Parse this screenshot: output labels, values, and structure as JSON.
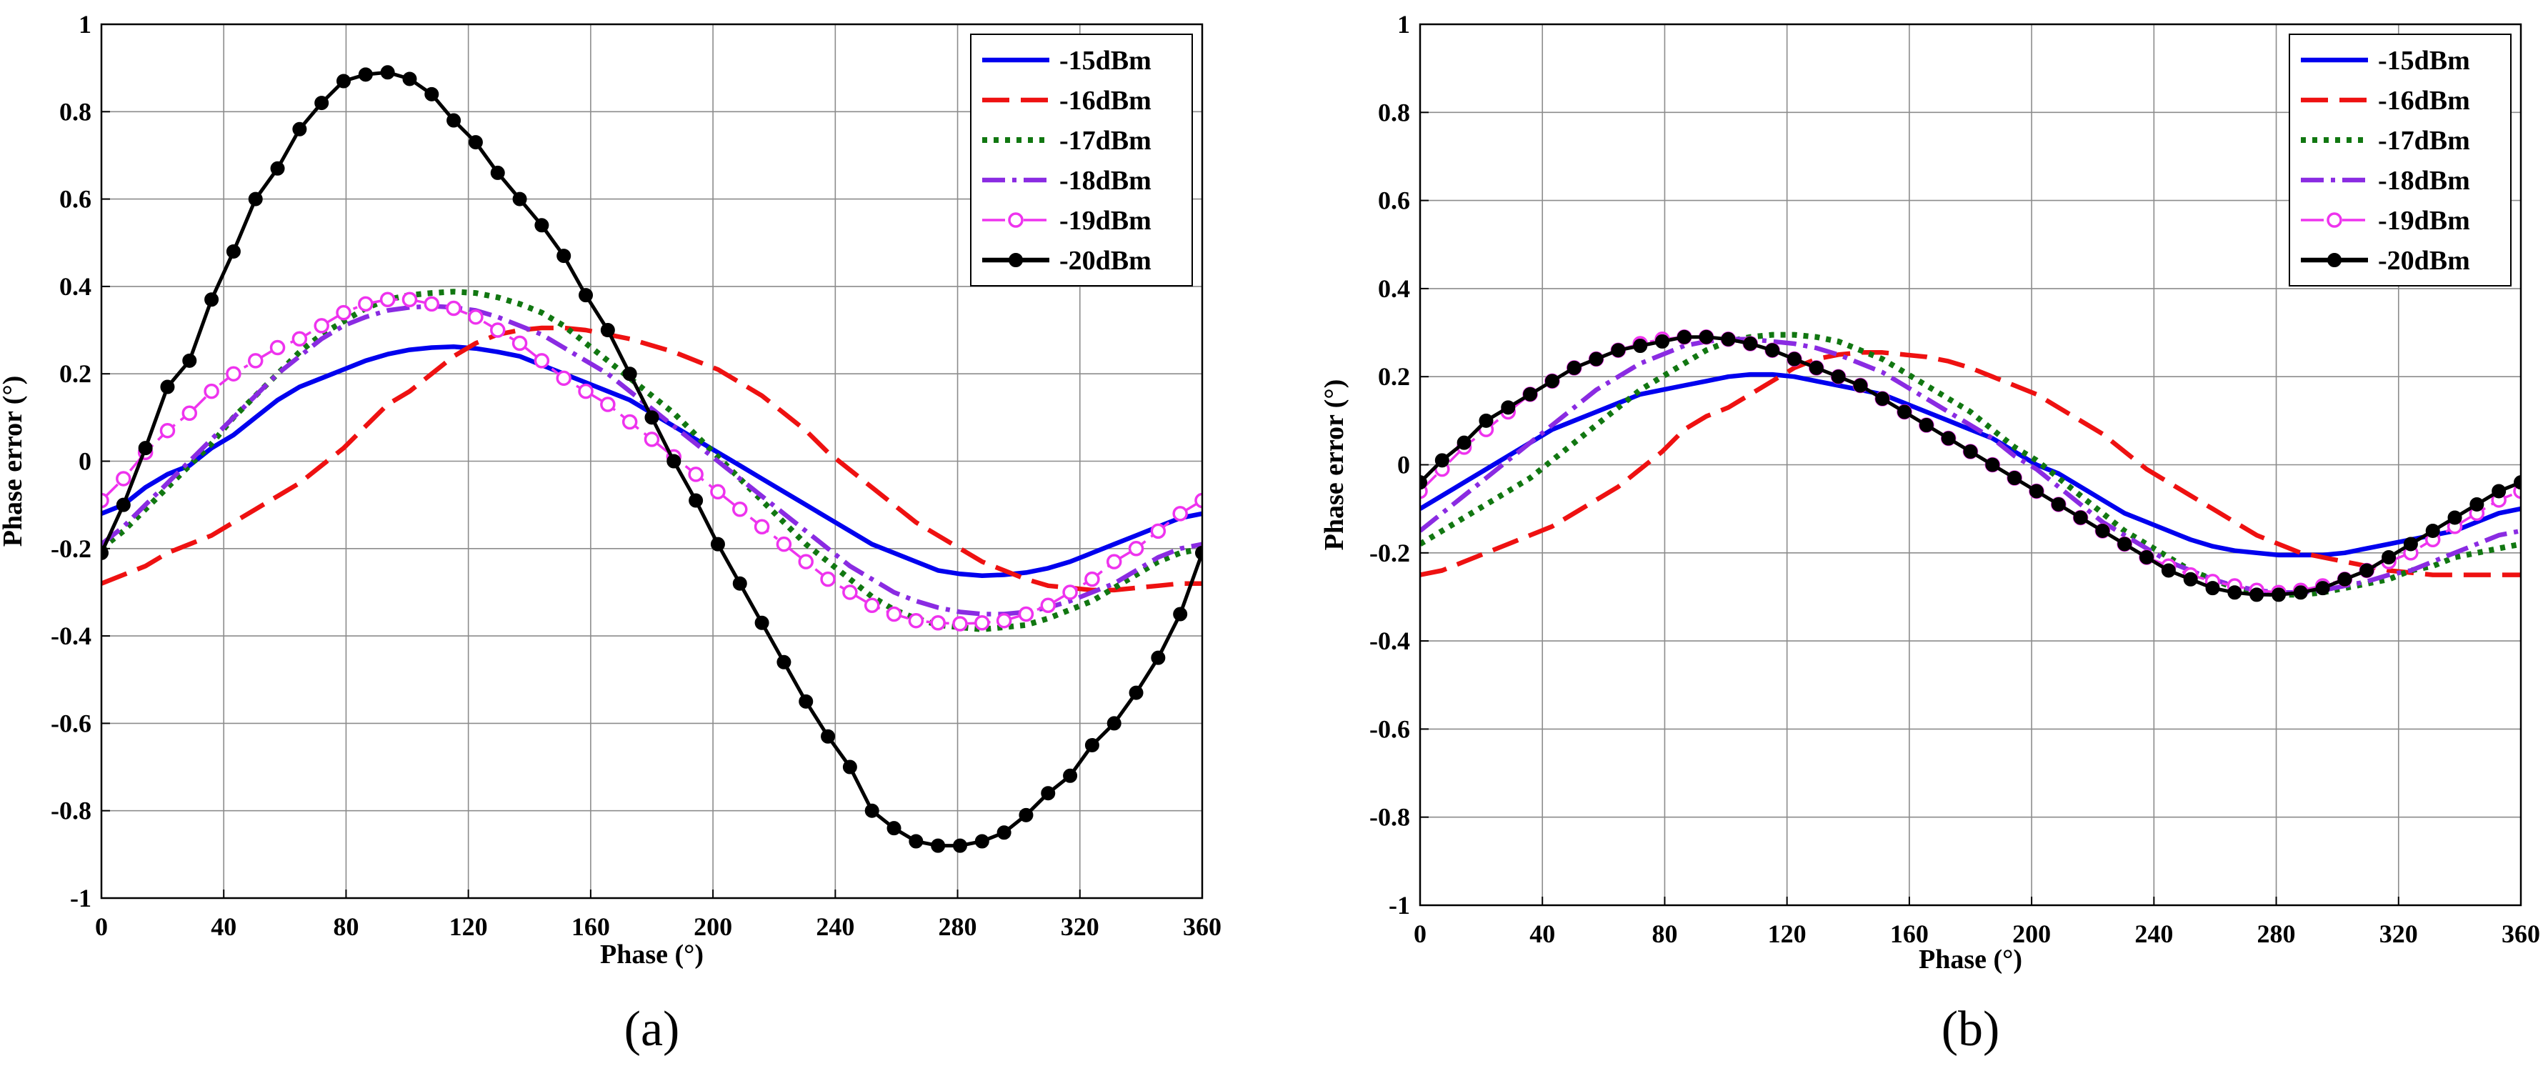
{
  "chart_data": [
    {
      "type": "line",
      "panel_label": "(a)",
      "xlabel": "Phase (°)",
      "ylabel": "Phase error (°)",
      "xlim": [
        0,
        360
      ],
      "ylim": [
        -1,
        1
      ],
      "xticks": [
        0,
        40,
        80,
        120,
        160,
        200,
        240,
        280,
        320,
        360
      ],
      "yticks": [
        -1,
        -0.8,
        -0.6,
        -0.4,
        -0.2,
        0,
        0.2,
        0.4,
        0.6,
        0.8,
        1
      ],
      "ytick_labels": [
        "-1",
        "-0.8",
        "-0.6",
        "-0.4",
        "-0.2",
        "0",
        "0.2",
        "0.4",
        "0.6",
        "0.8",
        "1"
      ],
      "grid": true,
      "legend_position": "top-right",
      "x": [
        0,
        7.2,
        14.4,
        21.6,
        28.8,
        36,
        43.2,
        50.4,
        57.6,
        64.8,
        72,
        79.2,
        86.4,
        93.6,
        100.8,
        108,
        115.2,
        122.4,
        129.6,
        136.8,
        144,
        151.2,
        158.4,
        165.6,
        172.8,
        180,
        187.2,
        194.4,
        201.6,
        208.8,
        216,
        223.2,
        230.4,
        237.6,
        244.8,
        252,
        259.2,
        266.4,
        273.6,
        280.8,
        288,
        295.2,
        302.4,
        309.6,
        316.8,
        324,
        331.2,
        338.4,
        345.6,
        352.8,
        360
      ],
      "series": [
        {
          "name": "-15dBm",
          "color": "#0000ee",
          "dash": "solid",
          "marker": "none",
          "values": [
            -0.12,
            -0.1,
            -0.06,
            -0.03,
            -0.01,
            0.03,
            0.06,
            0.1,
            0.14,
            0.17,
            0.19,
            0.21,
            0.23,
            0.245,
            0.255,
            0.26,
            0.262,
            0.258,
            0.25,
            0.24,
            0.22,
            0.2,
            0.18,
            0.16,
            0.14,
            0.11,
            0.08,
            0.05,
            0.02,
            -0.01,
            -0.04,
            -0.07,
            -0.1,
            -0.13,
            -0.16,
            -0.19,
            -0.21,
            -0.23,
            -0.25,
            -0.258,
            -0.262,
            -0.26,
            -0.255,
            -0.245,
            -0.23,
            -0.21,
            -0.19,
            -0.17,
            -0.15,
            -0.13,
            -0.12
          ]
        },
        {
          "name": "-16dBm",
          "color": "#ee1111",
          "dash": "dash",
          "marker": "none",
          "values": [
            -0.28,
            -0.26,
            -0.24,
            -0.21,
            -0.19,
            -0.17,
            -0.14,
            -0.11,
            -0.08,
            -0.05,
            -0.01,
            0.03,
            0.08,
            0.13,
            0.16,
            0.2,
            0.24,
            0.27,
            0.29,
            0.3,
            0.305,
            0.305,
            0.3,
            0.29,
            0.28,
            0.265,
            0.25,
            0.23,
            0.21,
            0.18,
            0.15,
            0.11,
            0.07,
            0.02,
            -0.02,
            -0.06,
            -0.1,
            -0.14,
            -0.17,
            -0.2,
            -0.23,
            -0.25,
            -0.27,
            -0.285,
            -0.29,
            -0.295,
            -0.295,
            -0.29,
            -0.285,
            -0.28,
            -0.28
          ]
        },
        {
          "name": "-17dBm",
          "color": "#117711",
          "dash": "dot",
          "marker": "none",
          "values": [
            -0.2,
            -0.16,
            -0.11,
            -0.06,
            -0.01,
            0.04,
            0.1,
            0.15,
            0.2,
            0.25,
            0.29,
            0.32,
            0.35,
            0.37,
            0.38,
            0.385,
            0.388,
            0.385,
            0.375,
            0.36,
            0.34,
            0.31,
            0.27,
            0.23,
            0.19,
            0.15,
            0.11,
            0.06,
            0.01,
            -0.04,
            -0.09,
            -0.14,
            -0.19,
            -0.23,
            -0.27,
            -0.31,
            -0.34,
            -0.36,
            -0.375,
            -0.38,
            -0.385,
            -0.38,
            -0.375,
            -0.36,
            -0.34,
            -0.32,
            -0.29,
            -0.26,
            -0.23,
            -0.21,
            -0.2
          ]
        },
        {
          "name": "-18dBm",
          "color": "#8a2be2",
          "dash": "dashdot",
          "marker": "none",
          "values": [
            -0.19,
            -0.15,
            -0.1,
            -0.05,
            0.0,
            0.05,
            0.1,
            0.15,
            0.2,
            0.24,
            0.28,
            0.31,
            0.33,
            0.345,
            0.352,
            0.355,
            0.352,
            0.345,
            0.33,
            0.31,
            0.29,
            0.26,
            0.23,
            0.2,
            0.16,
            0.12,
            0.08,
            0.04,
            0.0,
            -0.04,
            -0.08,
            -0.12,
            -0.16,
            -0.2,
            -0.24,
            -0.27,
            -0.3,
            -0.32,
            -0.335,
            -0.345,
            -0.35,
            -0.35,
            -0.345,
            -0.335,
            -0.32,
            -0.3,
            -0.28,
            -0.25,
            -0.22,
            -0.2,
            -0.19
          ]
        },
        {
          "name": "-19dBm",
          "color": "#ee33ee",
          "dash": "dashdot",
          "marker": "circle-open",
          "values": [
            -0.09,
            -0.04,
            0.02,
            0.07,
            0.11,
            0.16,
            0.2,
            0.23,
            0.26,
            0.28,
            0.31,
            0.34,
            0.36,
            0.37,
            0.37,
            0.36,
            0.35,
            0.33,
            0.3,
            0.27,
            0.23,
            0.19,
            0.16,
            0.13,
            0.09,
            0.05,
            0.01,
            -0.03,
            -0.07,
            -0.11,
            -0.15,
            -0.19,
            -0.23,
            -0.27,
            -0.3,
            -0.33,
            -0.35,
            -0.365,
            -0.37,
            -0.372,
            -0.37,
            -0.365,
            -0.35,
            -0.33,
            -0.3,
            -0.27,
            -0.23,
            -0.2,
            -0.16,
            -0.12,
            -0.09
          ]
        },
        {
          "name": "-20dBm",
          "color": "#000000",
          "dash": "solid",
          "marker": "circle-filled",
          "values": [
            -0.21,
            -0.1,
            0.03,
            0.17,
            0.23,
            0.37,
            0.48,
            0.6,
            0.67,
            0.76,
            0.82,
            0.87,
            0.885,
            0.89,
            0.875,
            0.84,
            0.78,
            0.73,
            0.66,
            0.6,
            0.54,
            0.47,
            0.38,
            0.3,
            0.2,
            0.1,
            0.0,
            -0.09,
            -0.19,
            -0.28,
            -0.37,
            -0.46,
            -0.55,
            -0.63,
            -0.7,
            -0.8,
            -0.84,
            -0.87,
            -0.88,
            -0.88,
            -0.87,
            -0.85,
            -0.81,
            -0.76,
            -0.72,
            -0.65,
            -0.6,
            -0.53,
            -0.45,
            -0.35,
            -0.21
          ]
        }
      ]
    },
    {
      "type": "line",
      "panel_label": "(b)",
      "xlabel": "Phase (°)",
      "ylabel": "Phase error (°)",
      "xlim": [
        0,
        360
      ],
      "ylim": [
        -1,
        1
      ],
      "xticks": [
        0,
        40,
        80,
        120,
        160,
        200,
        240,
        280,
        320,
        360
      ],
      "yticks": [
        -1,
        -0.8,
        -0.6,
        -0.4,
        -0.2,
        0,
        0.2,
        0.4,
        0.6,
        0.8,
        1
      ],
      "ytick_labels": [
        "-1",
        "-0.8",
        "-0.6",
        "-0.4",
        "-0.2",
        "0",
        "0.2",
        "0.4",
        "0.6",
        "0.8",
        "1"
      ],
      "grid": true,
      "legend_position": "top-right",
      "x": [
        0,
        7.2,
        14.4,
        21.6,
        28.8,
        36,
        43.2,
        50.4,
        57.6,
        64.8,
        72,
        79.2,
        86.4,
        93.6,
        100.8,
        108,
        115.2,
        122.4,
        129.6,
        136.8,
        144,
        151.2,
        158.4,
        165.6,
        172.8,
        180,
        187.2,
        194.4,
        201.6,
        208.8,
        216,
        223.2,
        230.4,
        237.6,
        244.8,
        252,
        259.2,
        266.4,
        273.6,
        280.8,
        288,
        295.2,
        302.4,
        309.6,
        316.8,
        324,
        331.2,
        338.4,
        345.6,
        352.8,
        360
      ],
      "series": [
        {
          "name": "-15dBm",
          "color": "#0000ee",
          "dash": "solid",
          "marker": "none",
          "values": [
            -0.1,
            -0.07,
            -0.04,
            -0.01,
            0.02,
            0.05,
            0.08,
            0.1,
            0.12,
            0.14,
            0.16,
            0.17,
            0.18,
            0.19,
            0.2,
            0.205,
            0.205,
            0.2,
            0.19,
            0.18,
            0.17,
            0.16,
            0.14,
            0.12,
            0.1,
            0.08,
            0.06,
            0.03,
            0.0,
            -0.02,
            -0.05,
            -0.08,
            -0.11,
            -0.13,
            -0.15,
            -0.17,
            -0.185,
            -0.195,
            -0.2,
            -0.205,
            -0.205,
            -0.205,
            -0.2,
            -0.19,
            -0.18,
            -0.17,
            -0.16,
            -0.15,
            -0.13,
            -0.11,
            -0.1
          ]
        },
        {
          "name": "-16dBm",
          "color": "#ee1111",
          "dash": "dash",
          "marker": "none",
          "values": [
            -0.25,
            -0.24,
            -0.22,
            -0.2,
            -0.18,
            -0.16,
            -0.14,
            -0.11,
            -0.08,
            -0.05,
            -0.01,
            0.03,
            0.08,
            0.11,
            0.13,
            0.16,
            0.19,
            0.22,
            0.24,
            0.25,
            0.255,
            0.255,
            0.25,
            0.245,
            0.235,
            0.22,
            0.2,
            0.18,
            0.16,
            0.13,
            0.1,
            0.07,
            0.03,
            -0.01,
            -0.04,
            -0.07,
            -0.1,
            -0.13,
            -0.16,
            -0.18,
            -0.2,
            -0.21,
            -0.22,
            -0.23,
            -0.24,
            -0.245,
            -0.25,
            -0.25,
            -0.25,
            -0.25,
            -0.25
          ]
        },
        {
          "name": "-17dBm",
          "color": "#117711",
          "dash": "dot",
          "marker": "none",
          "values": [
            -0.18,
            -0.15,
            -0.12,
            -0.09,
            -0.06,
            -0.03,
            0.01,
            0.05,
            0.09,
            0.13,
            0.17,
            0.2,
            0.23,
            0.26,
            0.28,
            0.29,
            0.295,
            0.295,
            0.29,
            0.28,
            0.26,
            0.24,
            0.21,
            0.18,
            0.15,
            0.12,
            0.08,
            0.04,
            0.01,
            -0.03,
            -0.07,
            -0.11,
            -0.15,
            -0.18,
            -0.21,
            -0.24,
            -0.26,
            -0.28,
            -0.29,
            -0.295,
            -0.295,
            -0.29,
            -0.28,
            -0.27,
            -0.26,
            -0.24,
            -0.23,
            -0.21,
            -0.2,
            -0.19,
            -0.18
          ]
        },
        {
          "name": "-18dBm",
          "color": "#8a2be2",
          "dash": "dashdot",
          "marker": "none",
          "values": [
            -0.15,
            -0.11,
            -0.07,
            -0.03,
            0.01,
            0.05,
            0.09,
            0.13,
            0.17,
            0.2,
            0.23,
            0.25,
            0.27,
            0.28,
            0.285,
            0.285,
            0.28,
            0.275,
            0.265,
            0.25,
            0.23,
            0.21,
            0.18,
            0.15,
            0.12,
            0.09,
            0.06,
            0.02,
            -0.01,
            -0.05,
            -0.09,
            -0.13,
            -0.16,
            -0.19,
            -0.22,
            -0.24,
            -0.26,
            -0.275,
            -0.285,
            -0.29,
            -0.29,
            -0.285,
            -0.275,
            -0.265,
            -0.25,
            -0.24,
            -0.22,
            -0.2,
            -0.18,
            -0.16,
            -0.15
          ]
        },
        {
          "name": "-19dBm",
          "color": "#ee33ee",
          "dash": "dashdot",
          "marker": "circle-open",
          "values": [
            -0.06,
            -0.01,
            0.04,
            0.08,
            0.12,
            0.16,
            0.19,
            0.22,
            0.24,
            0.26,
            0.275,
            0.285,
            0.29,
            0.29,
            0.285,
            0.275,
            0.26,
            0.24,
            0.22,
            0.2,
            0.18,
            0.15,
            0.12,
            0.09,
            0.06,
            0.03,
            0.0,
            -0.03,
            -0.06,
            -0.09,
            -0.12,
            -0.15,
            -0.18,
            -0.21,
            -0.23,
            -0.25,
            -0.265,
            -0.275,
            -0.285,
            -0.29,
            -0.285,
            -0.275,
            -0.26,
            -0.24,
            -0.22,
            -0.2,
            -0.17,
            -0.14,
            -0.11,
            -0.08,
            -0.06
          ]
        },
        {
          "name": "-20dBm",
          "color": "#000000",
          "dash": "solid",
          "marker": "circle-filled",
          "values": [
            -0.04,
            0.01,
            0.05,
            0.1,
            0.13,
            0.16,
            0.19,
            0.22,
            0.24,
            0.26,
            0.27,
            0.28,
            0.29,
            0.29,
            0.285,
            0.275,
            0.26,
            0.24,
            0.22,
            0.2,
            0.18,
            0.15,
            0.12,
            0.09,
            0.06,
            0.03,
            0.0,
            -0.03,
            -0.06,
            -0.09,
            -0.12,
            -0.15,
            -0.18,
            -0.21,
            -0.24,
            -0.26,
            -0.28,
            -0.29,
            -0.295,
            -0.295,
            -0.29,
            -0.28,
            -0.26,
            -0.24,
            -0.21,
            -0.18,
            -0.15,
            -0.12,
            -0.09,
            -0.06,
            -0.04
          ]
        }
      ]
    }
  ]
}
